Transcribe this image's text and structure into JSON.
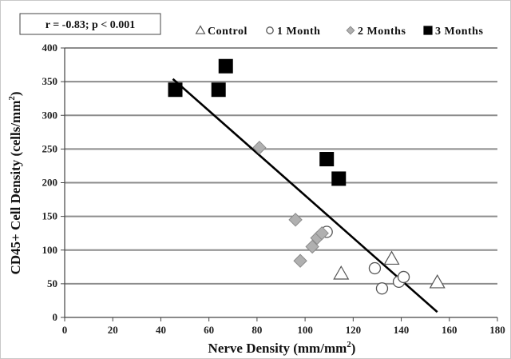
{
  "chart_data": {
    "type": "scatter",
    "annotation": "r = -0.83; p < 0.001",
    "xlabel": "Nerve Density (mm/mm",
    "xlabel_sup": "2",
    "xlabel_end": ")",
    "ylabel": "CD45+ Cell Density (cells/mm",
    "ylabel_sup": "2",
    "ylabel_end": ")",
    "xlim": [
      0,
      180
    ],
    "ylim": [
      0,
      400
    ],
    "xticks": [
      0,
      20,
      40,
      60,
      80,
      100,
      120,
      140,
      160,
      180
    ],
    "yticks": [
      0,
      50,
      100,
      150,
      200,
      250,
      300,
      350,
      400
    ],
    "grid": "horizontal",
    "legend_position": "top",
    "series": [
      {
        "name": "Control",
        "marker": "triangle",
        "color": "#ffffff",
        "stroke": "#555555",
        "points": [
          [
            115,
            65
          ],
          [
            136,
            87
          ],
          [
            155,
            52
          ]
        ]
      },
      {
        "name": "1 Month",
        "marker": "circle",
        "color": "#ffffff",
        "stroke": "#555555",
        "points": [
          [
            109,
            127
          ],
          [
            129,
            73
          ],
          [
            132,
            43
          ],
          [
            139,
            53
          ],
          [
            141,
            60
          ]
        ]
      },
      {
        "name": "2 Months",
        "marker": "diamond",
        "color": "#b0b0b0",
        "stroke": "#8a8a8a",
        "points": [
          [
            81,
            252
          ],
          [
            96,
            145
          ],
          [
            98,
            84
          ],
          [
            103,
            105
          ],
          [
            105,
            118
          ],
          [
            107,
            125
          ]
        ]
      },
      {
        "name": "3 Months",
        "marker": "square",
        "color": "#000000",
        "stroke": "#000000",
        "points": [
          [
            46,
            338
          ],
          [
            64,
            338
          ],
          [
            67,
            373
          ],
          [
            109,
            235
          ],
          [
            114,
            206
          ]
        ]
      }
    ],
    "trendline": {
      "x": [
        45,
        155
      ],
      "y": [
        354,
        8
      ]
    }
  }
}
